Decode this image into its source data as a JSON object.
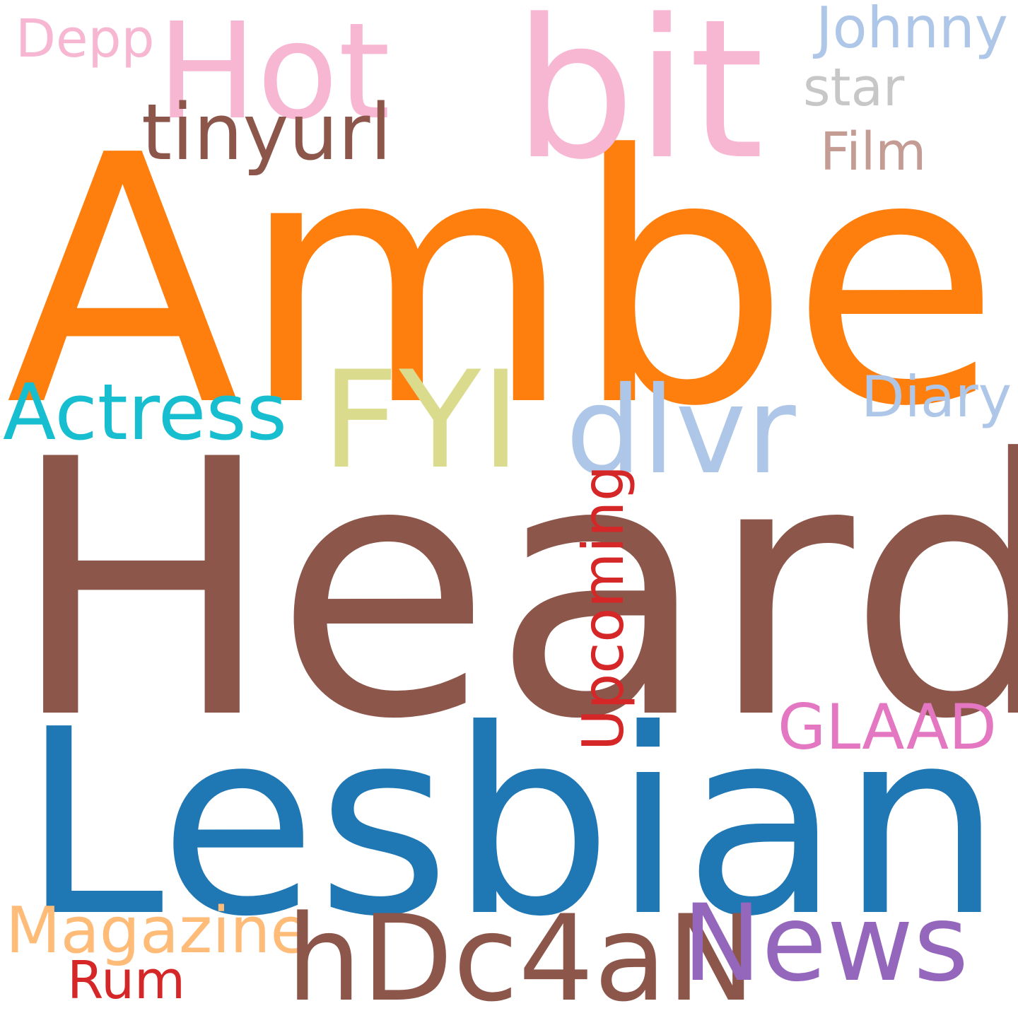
{
  "words": {
    "amber": {
      "text": "Amber",
      "color": "#ff7f0e"
    },
    "heard": {
      "text": "Heard",
      "color": "#8c564b"
    },
    "lesbian": {
      "text": "Lesbian",
      "color": "#1f77b4"
    },
    "bit": {
      "text": "bit",
      "color": "#f7b6d2"
    },
    "hot": {
      "text": "Hot",
      "color": "#f7b6d2"
    },
    "depp": {
      "text": "Depp",
      "color": "#f7b6d2"
    },
    "johnny": {
      "text": "Johnny",
      "color": "#aec7e8"
    },
    "star": {
      "text": "star",
      "color": "#c7c7c7"
    },
    "tinyurl": {
      "text": "tinyurl",
      "color": "#8c564b"
    },
    "film": {
      "text": "Film",
      "color": "#c49c94"
    },
    "actress": {
      "text": "Actress",
      "color": "#17becf"
    },
    "fyi": {
      "text": "FYI",
      "color": "#dbdb8d"
    },
    "dlvr": {
      "text": "dlvr",
      "color": "#aec7e8"
    },
    "diary": {
      "text": "Diary",
      "color": "#aec7e8"
    },
    "upcoming": {
      "text": "Upcoming",
      "color": "#d62728"
    },
    "glaad": {
      "text": "GLAAD",
      "color": "#e377c2"
    },
    "magazine": {
      "text": "Magazine",
      "color": "#ffbb78"
    },
    "hdc4an": {
      "text": "hDc4aN",
      "color": "#8c564b"
    },
    "news": {
      "text": "News",
      "color": "#9467bd"
    },
    "rum": {
      "text": "Rum",
      "color": "#d62728"
    }
  }
}
